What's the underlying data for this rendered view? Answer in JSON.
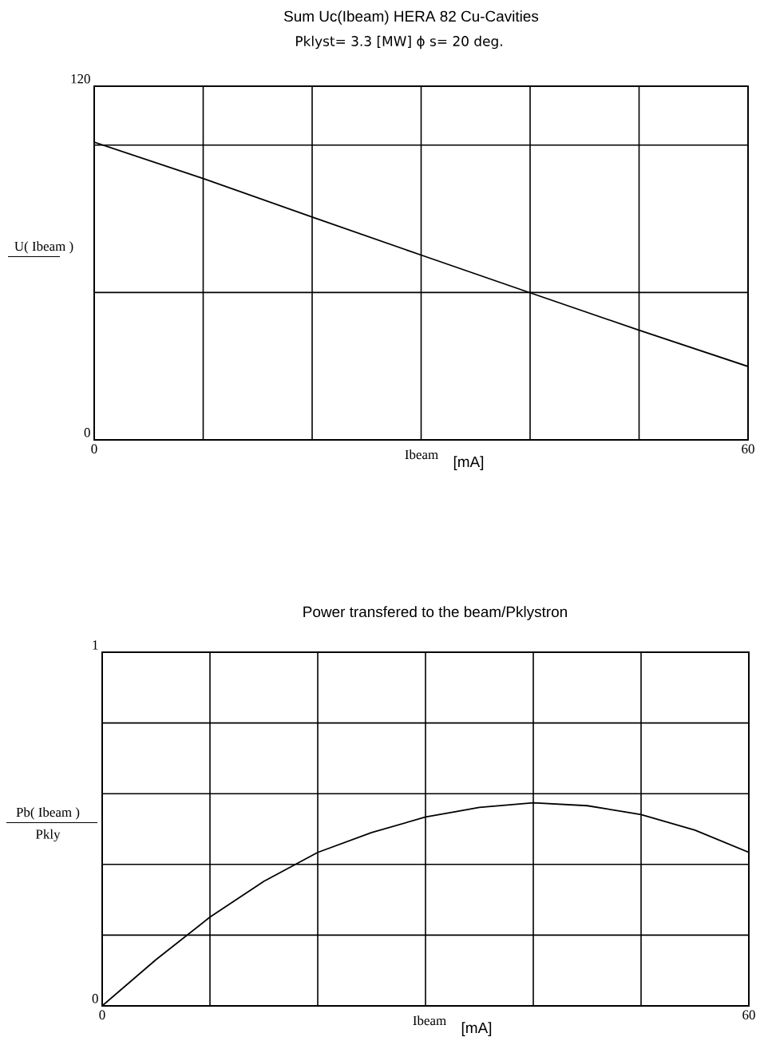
{
  "chart_data": [
    {
      "type": "line",
      "title": "Sum Uc(Ibeam)  HERA   82 Cu-Cavities",
      "subtitle": "Pklyst= 3.3 [MW]     ϕ s= 20 deg.",
      "xlabel": "Ibeam",
      "ylabel": "U( Ibeam )",
      "annotations": [
        "[mA]"
      ],
      "x": [
        0,
        10,
        20,
        30,
        40,
        50,
        60
      ],
      "series": [
        {
          "color": "#000000",
          "values": [
            101.0,
            88.7,
            75.6,
            62.7,
            49.9,
            37.2,
            24.9
          ]
        }
      ],
      "xlim": [
        0,
        60
      ],
      "ylim": [
        0,
        120
      ],
      "xticks": [
        0,
        {
          "value": 10,
          "label": null
        },
        {
          "value": 20,
          "label": null
        },
        {
          "value": 30,
          "label": null
        },
        {
          "value": 40,
          "label": null
        },
        {
          "value": 50,
          "label": null
        },
        60
      ],
      "yticks": [
        0,
        {
          "value": 50,
          "label": null
        },
        {
          "value": 100,
          "label": null
        },
        120
      ],
      "grid": true,
      "line_style": "solid"
    },
    {
      "type": "line",
      "title": "Power transfered to the beam/Pklystron",
      "xlabel": "Ibeam",
      "ylabel": "Pb( Ibeam )",
      "annotations": [
        "[mA]",
        "Pkly"
      ],
      "x": [
        0,
        5,
        10,
        15,
        20,
        25,
        30,
        35,
        40,
        45,
        50,
        55,
        60
      ],
      "series": [
        {
          "color": "#000000",
          "values": [
            0,
            0.131,
            0.251,
            0.352,
            0.434,
            0.49,
            0.534,
            0.561,
            0.574,
            0.566,
            0.541,
            0.497,
            0.434
          ]
        }
      ],
      "xlim": [
        0,
        60
      ],
      "ylim": [
        0,
        1
      ],
      "xticks": [
        0,
        {
          "value": 10,
          "label": null
        },
        {
          "value": 20,
          "label": null
        },
        {
          "value": 30,
          "label": null
        },
        {
          "value": 40,
          "label": null
        },
        {
          "value": 50,
          "label": null
        },
        60
      ],
      "yticks": [
        0,
        {
          "value": 0.2,
          "label": null
        },
        {
          "value": 0.4,
          "label": null
        },
        {
          "value": 0.6,
          "label": null
        },
        {
          "value": 0.8,
          "label": null
        },
        1
      ],
      "grid": true,
      "line_style": "solid"
    }
  ]
}
